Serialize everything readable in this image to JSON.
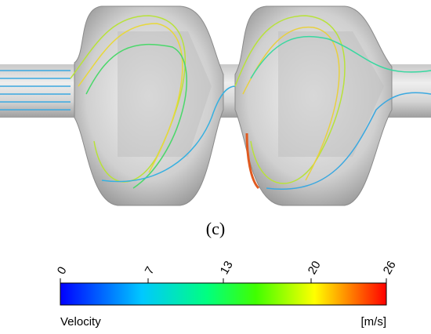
{
  "figure": {
    "caption": "(c)"
  },
  "colorbar": {
    "label": "Velocity",
    "unit": "[m/s]",
    "lim": [
      0,
      26
    ],
    "ticks": [
      0,
      7,
      13,
      20,
      26
    ]
  }
}
